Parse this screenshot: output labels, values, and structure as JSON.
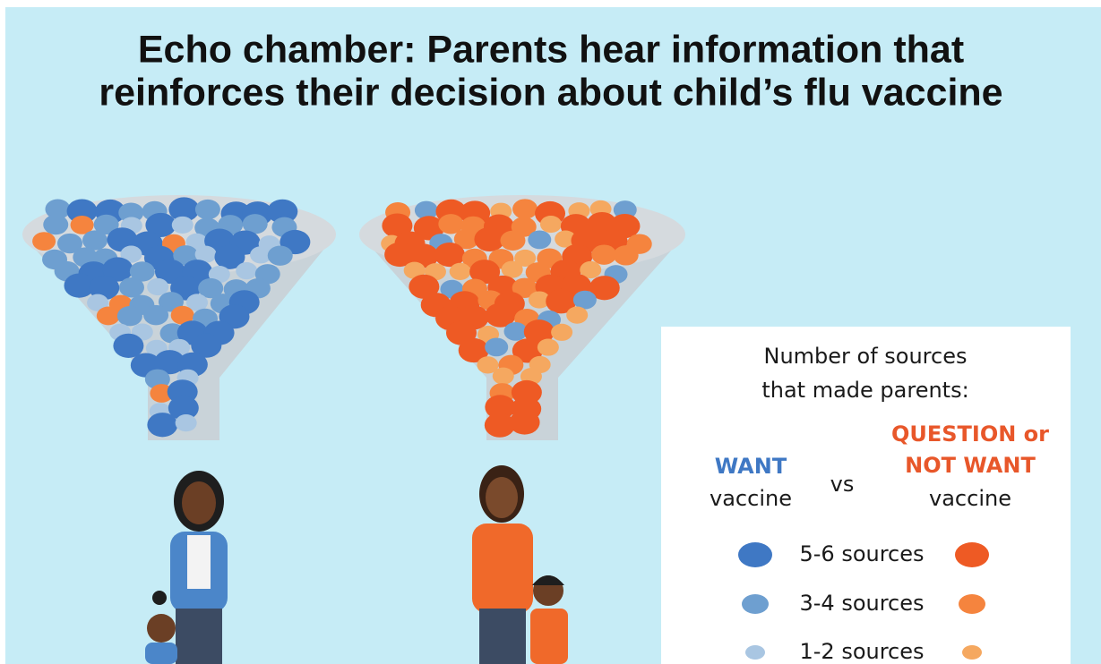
{
  "title": [
    "Echo chamber: Parents hear information that",
    "reinforces their decision about child’s flu vaccine"
  ],
  "legend": {
    "heading": [
      "Number of sources",
      "that made parents:"
    ],
    "want": {
      "label": "WANT",
      "sub": "vaccine"
    },
    "vs": "vs",
    "not_want": {
      "label": [
        "QUESTION or",
        "NOT WANT"
      ],
      "sub": "vaccine"
    },
    "rows": [
      "5-6 sources",
      "3-4 sources",
      "1-2 sources"
    ]
  }
}
